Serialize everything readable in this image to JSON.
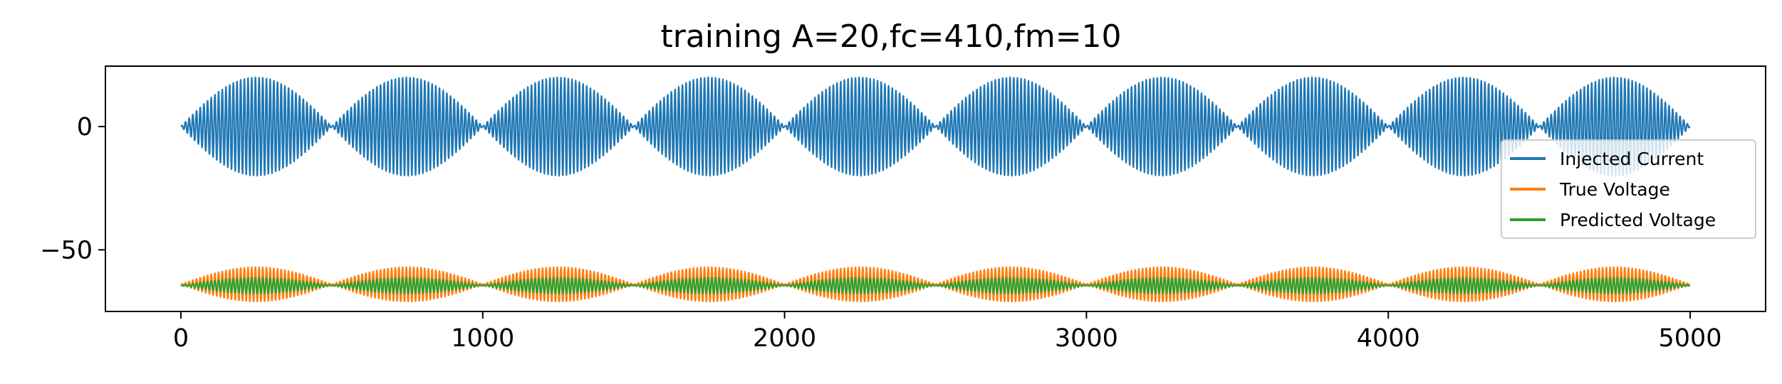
{
  "chart_data": {
    "type": "line",
    "title": "training A=20,fc=410,fm=10",
    "xlabel": "",
    "ylabel": "",
    "xlim": [
      -250,
      5250
    ],
    "ylim": [
      -75,
      24.5
    ],
    "xticks": [
      0,
      1000,
      2000,
      3000,
      4000,
      5000
    ],
    "xtick_labels": [
      "0",
      "1000",
      "2000",
      "3000",
      "4000",
      "5000"
    ],
    "yticks": [
      0,
      -50
    ],
    "ytick_labels": [
      "0",
      "−50"
    ],
    "grid": false,
    "legend_position": "center-right",
    "x_range": [
      0,
      5000
    ],
    "series": [
      {
        "name": "Injected Current",
        "color": "#1f77b4",
        "baseline": 0,
        "amplitude": 20,
        "envelope_periods": 10,
        "oscillation_cycles_per_envelope": 41
      },
      {
        "name": "True Voltage",
        "color": "#ff7f0e",
        "baseline": -64,
        "amplitude": 7,
        "envelope_periods": 10,
        "oscillation_cycles_per_envelope": 41
      },
      {
        "name": "Predicted Voltage",
        "color": "#2ca02c",
        "baseline": -64.5,
        "amplitude": 3.2,
        "envelope_periods": 10,
        "oscillation_cycles_per_envelope": 41
      }
    ]
  }
}
